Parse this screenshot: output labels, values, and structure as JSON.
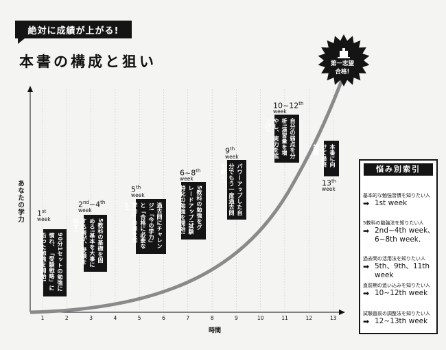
{
  "header": {
    "badge": "絶対に成績が上がる!",
    "title": "本書の構成と狙い"
  },
  "axes": {
    "y_label": "あなたの学力",
    "x_label": "時間",
    "x_ticks": [
      "1",
      "2",
      "3",
      "4",
      "5",
      "6",
      "7",
      "8",
      "9",
      "10",
      "11",
      "12",
      "13"
    ]
  },
  "goal": {
    "line1": "第一志望",
    "line2": "合格!"
  },
  "milestones": [
    {
      "num": "1",
      "sup": "st",
      "unit": "week",
      "note": "90分1セットの勉強に慣れ、「受験戦略」に沿った勉強を開始!"
    },
    {
      "num": "2",
      "sup": "nd",
      "sep": "~",
      "num2": "4",
      "sup2": "th",
      "unit": "week",
      "note": "5教科の基礎を固める!基本を大事にする者が、受験を制す!"
    },
    {
      "num": "5",
      "sup": "th",
      "unit": "week",
      "note": "過去問にチャレンジ!「今の学力」と「合格に必要な学力」の差を知る!"
    },
    {
      "num": "6",
      "sep": "~",
      "num2": "8",
      "sup2": "th",
      "unit": "week",
      "note": "5教科の勉強をグレードアップ!試験特化の勉強を開始!"
    },
    {
      "num": "9",
      "sup": "th",
      "unit": "week",
      "note": "パワーアップした自分でもう一度過去問を解く!"
    },
    {
      "num": "10",
      "sep": "~",
      "num2": "12",
      "sup2": "th",
      "unit": "week",
      "note": "自分の弱点を分析!演習量を増やし、実力を底上げ!"
    },
    {
      "num": "13",
      "sup": "th",
      "unit": "week",
      "note": "本番に向けて最終調整"
    }
  ],
  "index": {
    "title": "悩み別索引",
    "items": [
      {
        "label": "基本的な勉強習慣を知りたい人",
        "value": "1st week"
      },
      {
        "label": "5教科の勉強法を知りたい人",
        "value": "2nd~4th week、6~8th week."
      },
      {
        "label": "過去問の活用法を知りたい人",
        "value": "5th、9th、11th week"
      },
      {
        "label": "直前期の追い込みを知りたい人",
        "value": "10~12th week"
      },
      {
        "label": "試験直前の調整法を知りたい人",
        "value": "12~13th week"
      }
    ]
  },
  "colors": {
    "ink": "#141414",
    "curve": "#8a8a8a",
    "grid": "#bdbdbd",
    "paper": "#f4f4f2"
  },
  "icons": [
    "arrow-right-icon",
    "building-icon",
    "starburst-icon"
  ]
}
